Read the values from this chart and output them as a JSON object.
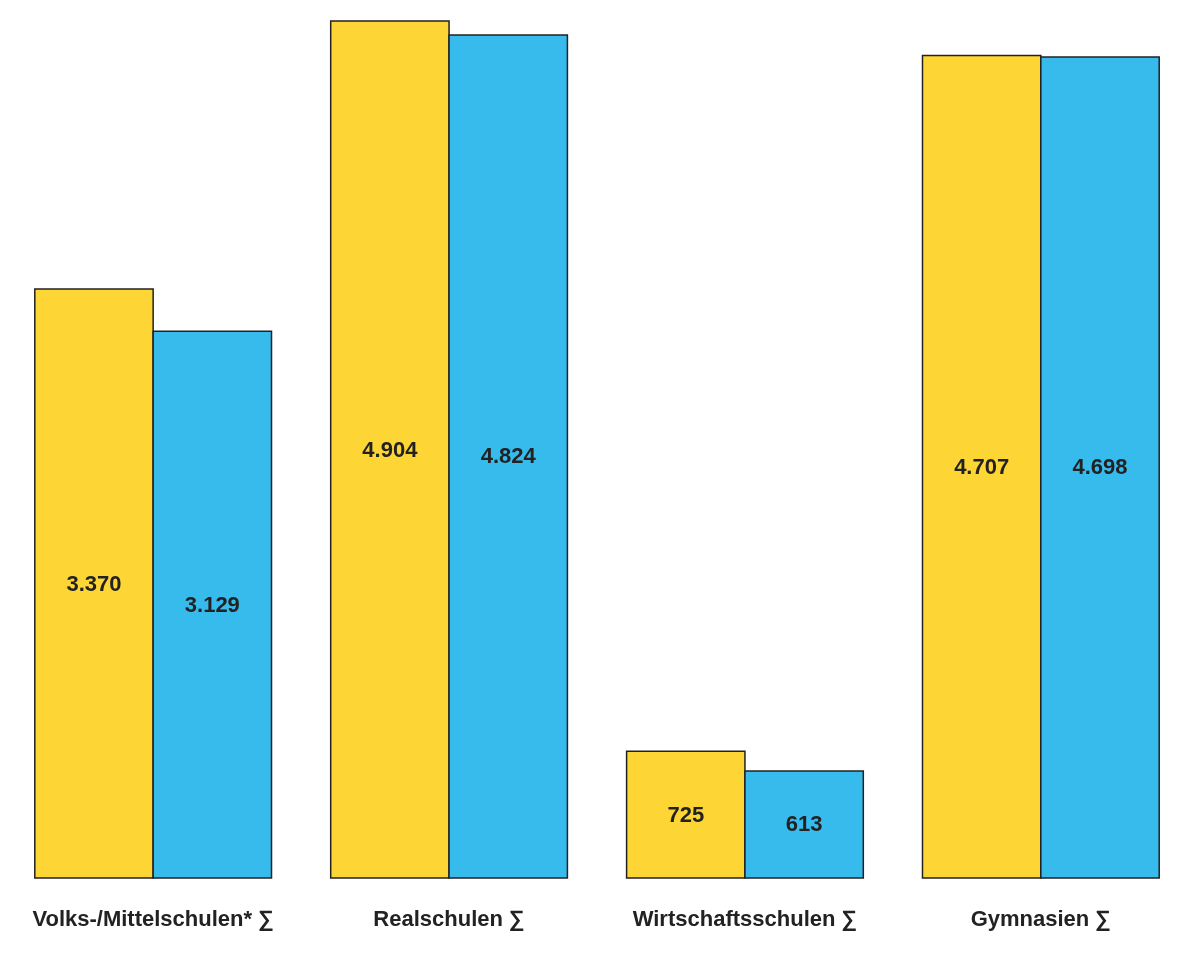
{
  "chart_data": {
    "type": "bar",
    "categories": [
      "Volks-/Mittelschulen* ∑",
      "Realschulen ∑",
      "Wirtschaftsschulen ∑",
      "Gymnasien ∑"
    ],
    "series": [
      {
        "color": "#fdd535",
        "values": [
          3370,
          4904,
          725,
          4707
        ],
        "value_labels": [
          "3.370",
          "4.904",
          "725",
          "4.707"
        ]
      },
      {
        "color": "#37bbed",
        "values": [
          3129,
          4824,
          613,
          4698
        ],
        "value_labels": [
          "3.129",
          "4.824",
          "613",
          "4.698"
        ]
      }
    ],
    "grid": false,
    "legend": false
  }
}
